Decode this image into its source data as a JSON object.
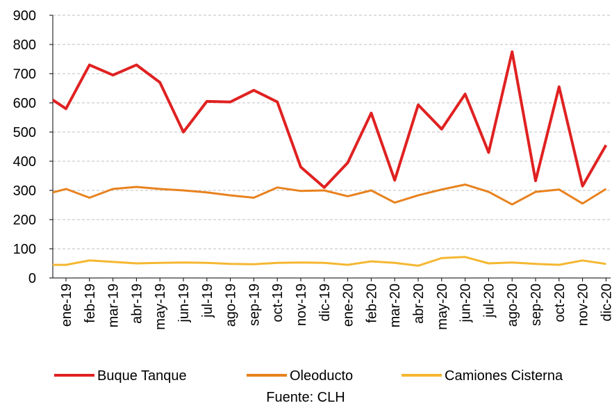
{
  "chart_data": {
    "type": "line",
    "categories": [
      null,
      "ene-19",
      "feb-19",
      "mar-19",
      "abr-19",
      "may-19",
      "jun-19",
      "jul-19",
      "ago-19",
      "sep-19",
      "oct-19",
      "nov-19",
      "dic-19",
      "ene-20",
      "feb-20",
      "mar-20",
      "abr-20",
      "may-20",
      "jun-20",
      "jul-20",
      "ago-20",
      "sep-20",
      "oct-20",
      "nov-20",
      "dic-20"
    ],
    "series": [
      {
        "name": "Buque Tanque",
        "color": "#e02121",
        "values": [
          610,
          580,
          730,
          695,
          730,
          670,
          500,
          605,
          603,
          643,
          603,
          380,
          310,
          395,
          565,
          335,
          593,
          510,
          630,
          430,
          775,
          333,
          655,
          315,
          455
        ]
      },
      {
        "name": "Oleoducto",
        "color": "#e8821e",
        "values": [
          293,
          305,
          275,
          305,
          312,
          305,
          300,
          293,
          283,
          275,
          310,
          298,
          300,
          280,
          300,
          258,
          283,
          303,
          320,
          295,
          252,
          295,
          303,
          255,
          305
        ]
      },
      {
        "name": "Camiones Cisterna",
        "color": "#f5b731",
        "values": [
          45,
          45,
          60,
          55,
          50,
          52,
          53,
          52,
          48,
          47,
          52,
          53,
          52,
          45,
          57,
          52,
          42,
          68,
          72,
          50,
          53,
          48,
          45,
          60,
          48
        ]
      }
    ],
    "ylim": [
      0,
      900
    ],
    "yticks": [
      0,
      100,
      200,
      300,
      400,
      500,
      600,
      700,
      800,
      900
    ],
    "grid": true,
    "legend": "bottom",
    "source": "Fuente: CLH"
  }
}
